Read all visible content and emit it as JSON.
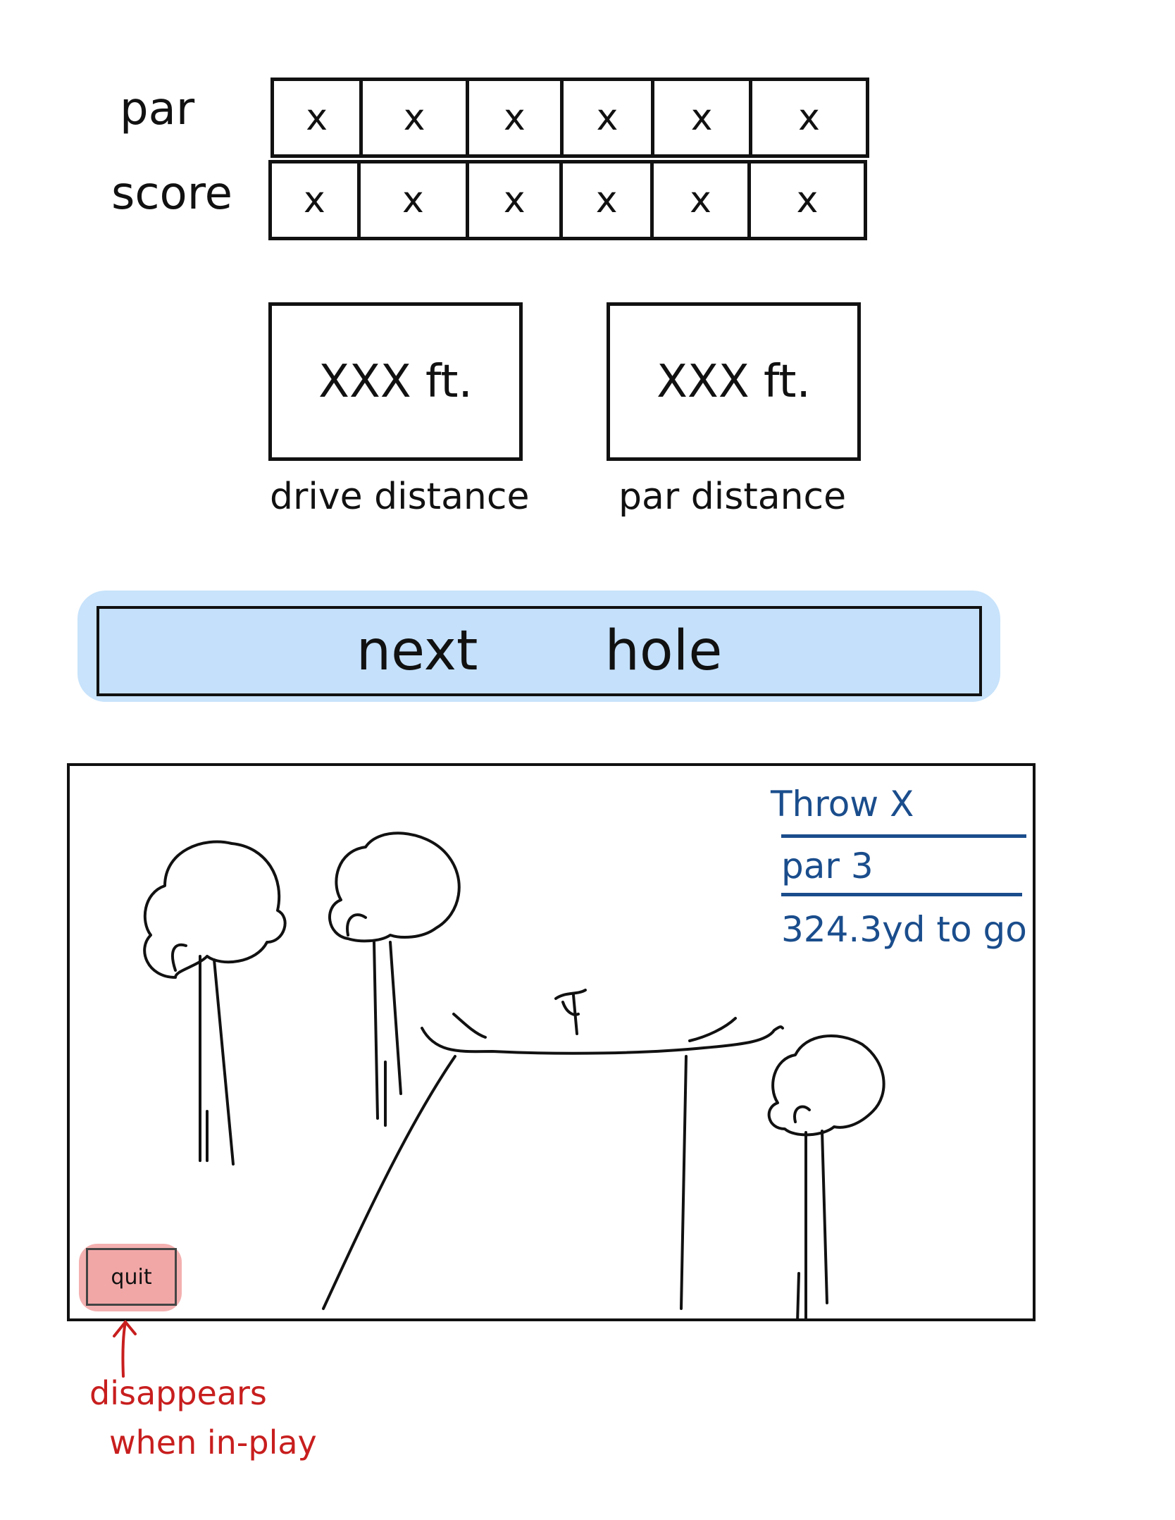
{
  "scorecard": {
    "par_label": "par",
    "score_label": "score",
    "par_cells": [
      "x",
      "x",
      "x",
      "x",
      "x",
      "x"
    ],
    "score_cells": [
      "x",
      "x",
      "x",
      "x",
      "x",
      "x"
    ]
  },
  "distances": {
    "drive_value": "XXX ft.",
    "drive_caption": "drive distance",
    "par_value": "XXX ft.",
    "par_caption": "par distance"
  },
  "next_hole": {
    "word1": "next",
    "word2": "hole"
  },
  "game_view": {
    "hud": {
      "throw": "Throw X",
      "par": "par 3",
      "to_go": "324.3yd to go"
    },
    "quit_label": "quit"
  },
  "annotation": {
    "line1": "disappears",
    "line2": "when in-play"
  },
  "colors": {
    "next_button_fill": "#c4e0fb",
    "quit_button_fill": "#f2a7a7",
    "hud_text": "#1a4d8c",
    "annotation_text": "#c81e1e"
  }
}
